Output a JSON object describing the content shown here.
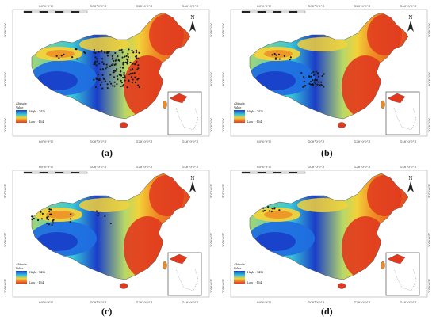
{
  "figure": {
    "coord_ticks": {
      "top": [
        "80°0'0\"E",
        "100°0'0\"E",
        "120°0'0\"E",
        "140°0'0\"E"
      ],
      "left": [
        "40°0'0\"N",
        "30°0'0\"N",
        "20°0'0\"N"
      ]
    },
    "north_label": "N",
    "legend": {
      "title": "Altitude",
      "subtitle": "Value",
      "high": "High : 7412",
      "low": "Low : -154"
    },
    "colors": {
      "low_red": "#e0391e",
      "orange": "#ef8a23",
      "yellow": "#f3d23a",
      "light_green": "#b6d867",
      "cyan": "#37c7d7",
      "blue": "#1f6fe0",
      "deep_blue": "#1a3ec9",
      "point": "#1a1a1a"
    },
    "panels": [
      {
        "label": "(a)",
        "points_set": "a"
      },
      {
        "label": "(b)",
        "points_set": "b"
      },
      {
        "label": "(c)",
        "points_set": "c"
      },
      {
        "label": "(d)",
        "points_set": "d"
      }
    ]
  }
}
